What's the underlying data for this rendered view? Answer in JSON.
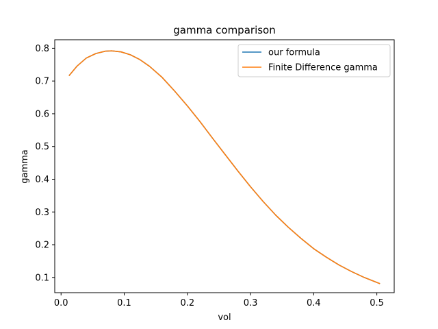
{
  "chart_data": {
    "type": "line",
    "title": "gamma comparison",
    "xlabel": "vol",
    "ylabel": "gamma",
    "xlim": [
      -0.01,
      0.5275
    ],
    "ylim": [
      0.0535,
      0.826
    ],
    "xticks": [
      0.0,
      0.1,
      0.2,
      0.3,
      0.4,
      0.5
    ],
    "xtick_labels": [
      "0.0",
      "0.1",
      "0.2",
      "0.3",
      "0.4",
      "0.5"
    ],
    "yticks": [
      0.1,
      0.2,
      0.3,
      0.4,
      0.5,
      0.6,
      0.7,
      0.8
    ],
    "ytick_labels": [
      "0.1",
      "0.2",
      "0.3",
      "0.4",
      "0.5",
      "0.6",
      "0.7",
      "0.8"
    ],
    "grid": false,
    "legend_position": "top-right",
    "x": [
      0.0125,
      0.025,
      0.04,
      0.055,
      0.07,
      0.08,
      0.095,
      0.11,
      0.125,
      0.14,
      0.16,
      0.18,
      0.2,
      0.22,
      0.24,
      0.26,
      0.28,
      0.3,
      0.32,
      0.34,
      0.36,
      0.38,
      0.4,
      0.42,
      0.44,
      0.46,
      0.48,
      0.505
    ],
    "series": [
      {
        "name": "our formula",
        "color": "#1f77b4",
        "values": [
          0.716,
          0.745,
          0.77,
          0.784,
          0.791,
          0.792,
          0.789,
          0.78,
          0.765,
          0.745,
          0.711,
          0.669,
          0.624,
          0.576,
          0.525,
          0.475,
          0.425,
          0.377,
          0.332,
          0.29,
          0.253,
          0.219,
          0.188,
          0.162,
          0.138,
          0.118,
          0.1,
          0.081
        ]
      },
      {
        "name": "Finite Difference gamma",
        "color": "#ff7f0e",
        "values": [
          0.716,
          0.745,
          0.77,
          0.784,
          0.791,
          0.792,
          0.789,
          0.78,
          0.765,
          0.745,
          0.711,
          0.669,
          0.624,
          0.576,
          0.525,
          0.475,
          0.425,
          0.377,
          0.332,
          0.29,
          0.253,
          0.219,
          0.188,
          0.162,
          0.138,
          0.118,
          0.1,
          0.081
        ]
      }
    ]
  }
}
